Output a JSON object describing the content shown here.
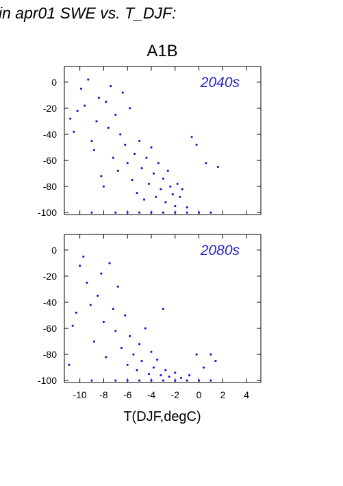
{
  "figure": {
    "header": "in apr01 SWE vs. T_DJF:",
    "title": "A1B",
    "xlabel": "T(DJF,degC)",
    "point_color": "#1c1cc8",
    "label_color": "#2323c8"
  },
  "chart_data": [
    {
      "type": "scatter",
      "panel_label": "2040s",
      "xlim": [
        -11.3,
        5.2
      ],
      "ylim": [
        -101.5,
        12
      ],
      "xticks": [
        -10,
        -8,
        -6,
        -4,
        -2,
        0,
        2,
        4
      ],
      "xtick_labels_shown": false,
      "yticks": [
        0,
        -20,
        -40,
        -60,
        -80,
        -100
      ],
      "ytick_labels": [
        "0",
        "-20",
        "-40",
        "-60",
        "-80",
        "-100"
      ],
      "grid": false,
      "point_count_approx": 1500,
      "points": [
        [
          -10.8,
          -28
        ],
        [
          -10.5,
          -38
        ],
        [
          -10.2,
          -22
        ],
        [
          -9.9,
          -5
        ],
        [
          -9.6,
          -18
        ],
        [
          -9.3,
          2
        ],
        [
          -9.0,
          -45
        ],
        [
          -8.8,
          -52
        ],
        [
          -8.6,
          -30
        ],
        [
          -8.4,
          -12
        ],
        [
          -8.2,
          -72
        ],
        [
          -8.0,
          -80
        ],
        [
          -7.8,
          -15
        ],
        [
          -7.6,
          -35
        ],
        [
          -7.4,
          -3
        ],
        [
          -7.2,
          -58
        ],
        [
          -7.0,
          -25
        ],
        [
          -6.8,
          -68
        ],
        [
          -6.6,
          -40
        ],
        [
          -6.4,
          -8
        ],
        [
          -6.2,
          -48
        ],
        [
          -6.0,
          -62
        ],
        [
          -5.8,
          -20
        ],
        [
          -5.6,
          -75
        ],
        [
          -5.4,
          -55
        ],
        [
          -5.2,
          -85
        ],
        [
          -5.0,
          -45
        ],
        [
          -4.8,
          -66
        ],
        [
          -4.6,
          -90
        ],
        [
          -4.4,
          -58
        ],
        [
          -4.2,
          -78
        ],
        [
          -4.0,
          -50
        ],
        [
          -3.8,
          -70
        ],
        [
          -3.6,
          -88
        ],
        [
          -3.4,
          -62
        ],
        [
          -3.2,
          -82
        ],
        [
          -3.0,
          -74
        ],
        [
          -2.8,
          -92
        ],
        [
          -2.6,
          -68
        ],
        [
          -2.4,
          -80
        ],
        [
          -2.2,
          -86
        ],
        [
          -2.0,
          -95
        ],
        [
          -1.8,
          -78
        ],
        [
          -1.6,
          -88
        ],
        [
          -1.4,
          -82
        ],
        [
          -1.0,
          -96
        ],
        [
          -0.6,
          -42
        ],
        [
          -0.2,
          -48
        ],
        [
          0.6,
          -62
        ],
        [
          1.6,
          -65
        ],
        [
          -7.0,
          -100
        ],
        [
          -6.0,
          -100
        ],
        [
          -5.0,
          -100
        ],
        [
          -4.0,
          -100
        ],
        [
          -3.0,
          -100
        ],
        [
          -2.0,
          -100
        ],
        [
          -1.0,
          -100
        ],
        [
          0.0,
          -100
        ],
        [
          1.0,
          -100
        ],
        [
          -9.0,
          -100
        ]
      ]
    },
    {
      "type": "scatter",
      "panel_label": "2080s",
      "xlim": [
        -11.3,
        5.2
      ],
      "ylim": [
        -101.5,
        12
      ],
      "xticks": [
        -10,
        -8,
        -6,
        -4,
        -2,
        0,
        2,
        4
      ],
      "xtick_labels": [
        "-10",
        "-8",
        "-6",
        "-4",
        "-2",
        "0",
        "2",
        "4"
      ],
      "yticks": [
        0,
        -20,
        -40,
        -60,
        -80,
        -100
      ],
      "ytick_labels": [
        "0",
        "-20",
        "-40",
        "-60",
        "-80",
        "-100"
      ],
      "grid": false,
      "point_count_approx": 1300,
      "points": [
        [
          -10.9,
          -88
        ],
        [
          -10.6,
          -58
        ],
        [
          -10.3,
          -48
        ],
        [
          -10.0,
          -12
        ],
        [
          -9.7,
          -5
        ],
        [
          -9.4,
          -25
        ],
        [
          -9.1,
          -42
        ],
        [
          -8.8,
          -70
        ],
        [
          -8.5,
          -35
        ],
        [
          -8.2,
          -18
        ],
        [
          -8.0,
          -55
        ],
        [
          -7.8,
          -82
        ],
        [
          -7.5,
          -10
        ],
        [
          -7.2,
          -45
        ],
        [
          -7.0,
          -62
        ],
        [
          -6.8,
          -28
        ],
        [
          -6.5,
          -75
        ],
        [
          -6.2,
          -50
        ],
        [
          -6.0,
          -88
        ],
        [
          -5.8,
          -66
        ],
        [
          -5.5,
          -80
        ],
        [
          -5.2,
          -92
        ],
        [
          -5.0,
          -72
        ],
        [
          -4.8,
          -85
        ],
        [
          -4.5,
          -60
        ],
        [
          -4.2,
          -95
        ],
        [
          -4.0,
          -78
        ],
        [
          -3.8,
          -90
        ],
        [
          -3.5,
          -84
        ],
        [
          -3.2,
          -96
        ],
        [
          -3.0,
          -45
        ],
        [
          -2.8,
          -92
        ],
        [
          -2.5,
          -97
        ],
        [
          -2.0,
          -94
        ],
        [
          -1.5,
          -98
        ],
        [
          -0.8,
          -96
        ],
        [
          -0.2,
          -80
        ],
        [
          0.4,
          -90
        ],
        [
          1.0,
          -80
        ],
        [
          1.4,
          -85
        ],
        [
          -7.0,
          -100
        ],
        [
          -6.0,
          -100
        ],
        [
          -5.0,
          -100
        ],
        [
          -4.0,
          -100
        ],
        [
          -3.0,
          -100
        ],
        [
          -2.0,
          -100
        ],
        [
          -1.0,
          -100
        ],
        [
          0.0,
          -100
        ],
        [
          1.0,
          -100
        ],
        [
          -9.0,
          -100
        ]
      ]
    }
  ]
}
